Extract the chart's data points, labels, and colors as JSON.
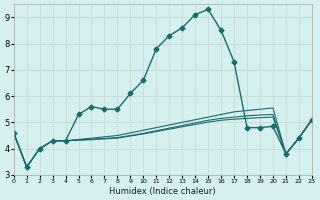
{
  "xlabel": "Humidex (Indice chaleur)",
  "background_color": "#d6f0ef",
  "grid_color": "#c8dedd",
  "line_color": "#1a6b6b",
  "xlim": [
    0,
    23
  ],
  "ylim": [
    3,
    9.5
  ],
  "yticks": [
    3,
    4,
    5,
    6,
    7,
    8,
    9
  ],
  "xticks": [
    0,
    1,
    2,
    3,
    4,
    5,
    6,
    7,
    8,
    9,
    10,
    11,
    12,
    13,
    14,
    15,
    16,
    17,
    18,
    19,
    20,
    21,
    22,
    23
  ],
  "series": [
    {
      "x": [
        0,
        1,
        2,
        3,
        4,
        5,
        6,
        7,
        8,
        9,
        10,
        11,
        12,
        13,
        14,
        15,
        16,
        17,
        18,
        19,
        20,
        21,
        22,
        23
      ],
      "y": [
        4.6,
        3.3,
        4.0,
        4.3,
        4.3,
        5.3,
        5.6,
        5.5,
        5.5,
        6.1,
        6.6,
        7.8,
        8.3,
        8.6,
        9.1,
        9.3,
        8.5,
        7.3,
        4.8,
        4.8,
        4.85,
        3.8,
        4.4,
        5.1
      ],
      "marker": "D",
      "markersize": 2.5,
      "linewidth": 1.0
    },
    {
      "x": [
        0,
        1,
        2,
        3,
        4,
        5,
        6,
        7,
        8,
        9,
        10,
        11,
        12,
        13,
        14,
        15,
        16,
        17,
        18,
        19,
        20,
        21,
        22,
        23
      ],
      "y": [
        4.6,
        3.3,
        4.0,
        4.3,
        4.3,
        4.35,
        4.4,
        4.45,
        4.5,
        4.6,
        4.7,
        4.8,
        4.9,
        5.0,
        5.1,
        5.2,
        5.3,
        5.4,
        5.45,
        5.5,
        5.55,
        3.8,
        4.4,
        5.1
      ],
      "marker": null,
      "markersize": 0,
      "linewidth": 0.8
    },
    {
      "x": [
        0,
        1,
        2,
        3,
        4,
        5,
        6,
        7,
        8,
        9,
        10,
        11,
        12,
        13,
        14,
        15,
        16,
        17,
        18,
        19,
        20,
        21,
        22,
        23
      ],
      "y": [
        4.6,
        3.3,
        4.0,
        4.3,
        4.3,
        4.33,
        4.36,
        4.39,
        4.42,
        4.5,
        4.58,
        4.68,
        4.78,
        4.88,
        4.98,
        5.08,
        5.15,
        5.2,
        5.25,
        5.28,
        5.3,
        3.8,
        4.4,
        5.1
      ],
      "marker": null,
      "markersize": 0,
      "linewidth": 0.8
    },
    {
      "x": [
        0,
        1,
        2,
        3,
        4,
        5,
        6,
        7,
        8,
        9,
        10,
        11,
        12,
        13,
        14,
        15,
        16,
        17,
        18,
        19,
        20,
        21,
        22,
        23
      ],
      "y": [
        4.6,
        3.3,
        4.0,
        4.3,
        4.3,
        4.32,
        4.34,
        4.37,
        4.4,
        4.48,
        4.56,
        4.65,
        4.74,
        4.83,
        4.92,
        5.01,
        5.08,
        5.12,
        5.15,
        5.18,
        5.2,
        3.8,
        4.4,
        5.1
      ],
      "marker": null,
      "markersize": 0,
      "linewidth": 0.8
    }
  ]
}
